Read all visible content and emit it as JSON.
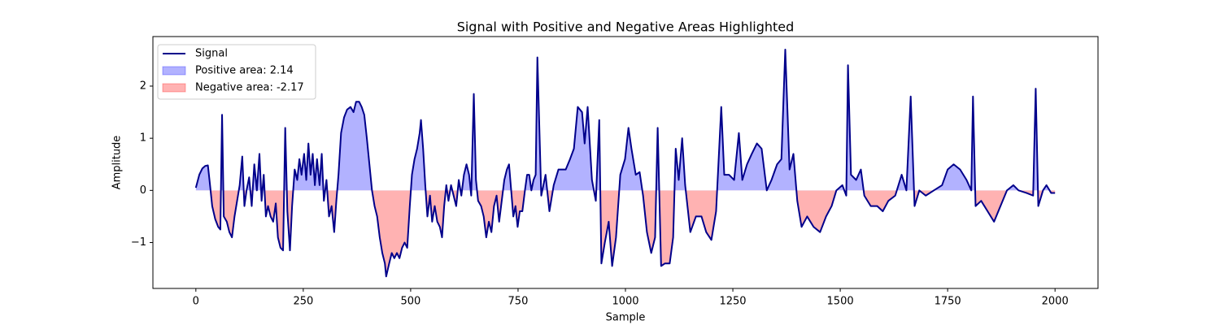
{
  "chart_data": {
    "type": "signed-area-line",
    "title": "Signal with Positive and Negative Areas Highlighted",
    "x_label": "Sample",
    "y_label": "Amplitude",
    "xlim": [
      -100,
      2100
    ],
    "ylim": [
      -1.88,
      2.95
    ],
    "xticks": [
      0,
      250,
      500,
      750,
      1000,
      1250,
      1500,
      1750,
      2000
    ],
    "yticks": [
      {
        "value": -1,
        "label": "−1"
      },
      0,
      1,
      2
    ],
    "legend": "upper left",
    "x": [
      0,
      8,
      15,
      22,
      28,
      33,
      38,
      45,
      52,
      57,
      61,
      65,
      72,
      78,
      84,
      90,
      96,
      102,
      108,
      113,
      118,
      124,
      130,
      136,
      142,
      148,
      153,
      158,
      163,
      168,
      174,
      180,
      186,
      191,
      197,
      203,
      208,
      213,
      219,
      224,
      230,
      236,
      241,
      246,
      252,
      257,
      262,
      267,
      272,
      277,
      282,
      288,
      293,
      298,
      304,
      310,
      316,
      322,
      327,
      332,
      338,
      345,
      352,
      360,
      367,
      373,
      380,
      386,
      392,
      398,
      404,
      410,
      416,
      422,
      428,
      434,
      440,
      443,
      450,
      456,
      462,
      468,
      474,
      480,
      486,
      492,
      498,
      503,
      509,
      515,
      521,
      524,
      529,
      534,
      539,
      545,
      550,
      556,
      562,
      568,
      573,
      578,
      583,
      588,
      594,
      600,
      606,
      612,
      618,
      624,
      630,
      636,
      641,
      647,
      652,
      657,
      664,
      670,
      676,
      682,
      688,
      694,
      700,
      706,
      712,
      718,
      724,
      729,
      734,
      739,
      744,
      749,
      754,
      760,
      766,
      771,
      776,
      781,
      786,
      791,
      795,
      804,
      814,
      823,
      833,
      844,
      861,
      871,
      880,
      889,
      899,
      905,
      912,
      922,
      931,
      939,
      944,
      952,
      961,
      969,
      978,
      988,
      999,
      1007,
      1014,
      1024,
      1033,
      1041,
      1050,
      1060,
      1069,
      1075,
      1083,
      1092,
      1103,
      1111,
      1117,
      1124,
      1132,
      1139,
      1151,
      1164,
      1177,
      1188,
      1200,
      1211,
      1223,
      1230,
      1241,
      1253,
      1264,
      1272,
      1283,
      1294,
      1306,
      1317,
      1329,
      1340,
      1353,
      1363,
      1372,
      1382,
      1391,
      1400,
      1410,
      1423,
      1438,
      1453,
      1467,
      1480,
      1491,
      1505,
      1514,
      1518,
      1525,
      1537,
      1548,
      1556,
      1571,
      1586,
      1599,
      1612,
      1628,
      1643,
      1654,
      1664,
      1673,
      1684,
      1699,
      1718,
      1737,
      1750,
      1764,
      1779,
      1794,
      1805,
      1809,
      1815,
      1828,
      1843,
      1858,
      1873,
      1888,
      1903,
      1915,
      1934,
      1949,
      1955,
      1961,
      1972,
      1980,
      1991,
      2000
    ],
    "series": [
      {
        "name": "Signal",
        "color": "#00008b",
        "values": [
          0.05,
          0.3,
          0.42,
          0.47,
          0.48,
          0.1,
          -0.3,
          -0.55,
          -0.7,
          -0.75,
          1.45,
          -0.5,
          -0.6,
          -0.8,
          -0.9,
          -0.5,
          -0.2,
          0.1,
          0.65,
          -0.3,
          0.0,
          0.25,
          -0.3,
          0.5,
          0.0,
          0.7,
          -0.2,
          0.3,
          -0.5,
          -0.3,
          -0.5,
          -0.6,
          -0.25,
          -0.9,
          -1.1,
          -1.15,
          1.2,
          -0.4,
          -1.15,
          -0.3,
          0.4,
          0.2,
          0.6,
          0.3,
          0.7,
          0.2,
          0.9,
          0.3,
          0.7,
          0.1,
          0.6,
          0.1,
          0.7,
          -0.2,
          0.2,
          -0.5,
          -0.3,
          -0.8,
          -0.2,
          0.3,
          1.1,
          1.4,
          1.55,
          1.6,
          1.5,
          1.7,
          1.7,
          1.6,
          1.45,
          1.0,
          0.5,
          0.0,
          -0.3,
          -0.5,
          -0.9,
          -1.2,
          -1.4,
          -1.65,
          -1.4,
          -1.2,
          -1.3,
          -1.2,
          -1.3,
          -1.1,
          -1.0,
          -1.1,
          -0.3,
          0.3,
          0.6,
          0.8,
          1.1,
          1.35,
          0.8,
          0.1,
          -0.5,
          -0.1,
          -0.6,
          -0.3,
          -0.6,
          -0.7,
          -0.9,
          -0.3,
          0.1,
          -0.2,
          0.1,
          -0.1,
          -0.3,
          0.2,
          -0.1,
          0.3,
          0.5,
          0.3,
          -0.1,
          1.85,
          0.2,
          -0.2,
          -0.3,
          -0.5,
          -0.9,
          -0.6,
          -0.8,
          -0.3,
          -0.1,
          -0.6,
          -0.2,
          0.2,
          0.4,
          0.5,
          0.0,
          -0.5,
          -0.3,
          -0.7,
          -0.4,
          -0.4,
          0.0,
          0.3,
          0.3,
          0.0,
          0.2,
          0.3,
          2.55,
          -0.1,
          0.3,
          -0.4,
          0.1,
          0.4,
          0.4,
          0.6,
          0.8,
          1.6,
          1.5,
          0.9,
          1.6,
          0.2,
          -0.2,
          1.35,
          -1.4,
          -1.0,
          -0.6,
          -1.45,
          -0.9,
          0.3,
          0.6,
          1.2,
          0.8,
          0.3,
          0.35,
          -0.1,
          -0.8,
          -1.2,
          -0.9,
          1.2,
          -1.45,
          -1.4,
          -1.4,
          -0.9,
          0.8,
          0.2,
          1.0,
          0.1,
          -0.8,
          -0.5,
          -0.5,
          -0.8,
          -0.95,
          -0.4,
          1.6,
          0.3,
          0.3,
          0.2,
          1.1,
          0.2,
          0.5,
          0.7,
          0.9,
          0.8,
          0.0,
          0.2,
          0.5,
          0.6,
          2.7,
          0.4,
          0.7,
          -0.2,
          -0.7,
          -0.5,
          -0.7,
          -0.8,
          -0.5,
          -0.3,
          0.0,
          0.1,
          -0.1,
          2.4,
          0.3,
          0.2,
          0.4,
          -0.1,
          -0.3,
          -0.3,
          -0.4,
          -0.2,
          -0.1,
          0.3,
          0.0,
          1.8,
          -0.3,
          0.0,
          -0.1,
          0.0,
          0.1,
          0.4,
          0.5,
          0.4,
          0.2,
          0.0,
          1.8,
          -0.3,
          -0.2,
          -0.4,
          -0.6,
          -0.3,
          0.0,
          0.1,
          0.0,
          -0.05,
          -0.1,
          1.95,
          -0.3,
          0.0,
          0.1,
          -0.05,
          -0.05
        ]
      }
    ],
    "fills": [
      {
        "name": "Positive area: 2.14",
        "color": "#0000ff",
        "opacity": 0.3,
        "where": "above"
      },
      {
        "name": "Negative area: -2.17",
        "color": "#ff0000",
        "opacity": 0.3,
        "where": "below"
      }
    ]
  }
}
